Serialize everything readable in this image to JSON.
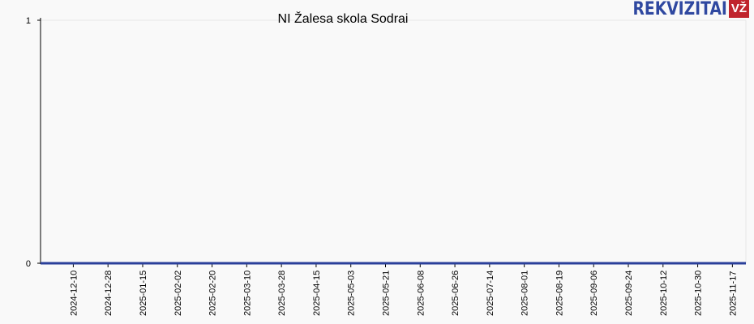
{
  "title": "NI Žalesa skola Sodrai",
  "logo": {
    "text": "REKVIZITAI",
    "badge": "VŽ",
    "text_color": "#2f48a0",
    "badge_color": "#c0242d"
  },
  "chart_data": {
    "type": "line",
    "title": "NI Žalesa skola Sodrai",
    "xlabel": "",
    "ylabel": "",
    "ylim": [
      0,
      1
    ],
    "yticks": [
      "0",
      "1"
    ],
    "xticks": [
      "2024-12-10",
      "2024-12-28",
      "2025-01-15",
      "2025-02-02",
      "2025-02-20",
      "2025-03-10",
      "2025-03-28",
      "2025-04-15",
      "2025-05-03",
      "2025-05-21",
      "2025-06-08",
      "2025-06-26",
      "2025-07-14",
      "2025-08-01",
      "2025-08-19",
      "2025-09-06",
      "2025-09-24",
      "2025-10-12",
      "2025-10-30",
      "2025-11-17"
    ],
    "xlim": [
      "2024-11-23",
      "2025-11-24"
    ],
    "grid": false,
    "series": [
      {
        "x": [
          "2024-11-23",
          "2025-11-24"
        ],
        "values": [
          0,
          0
        ],
        "color": "#2a3f9a"
      }
    ]
  }
}
